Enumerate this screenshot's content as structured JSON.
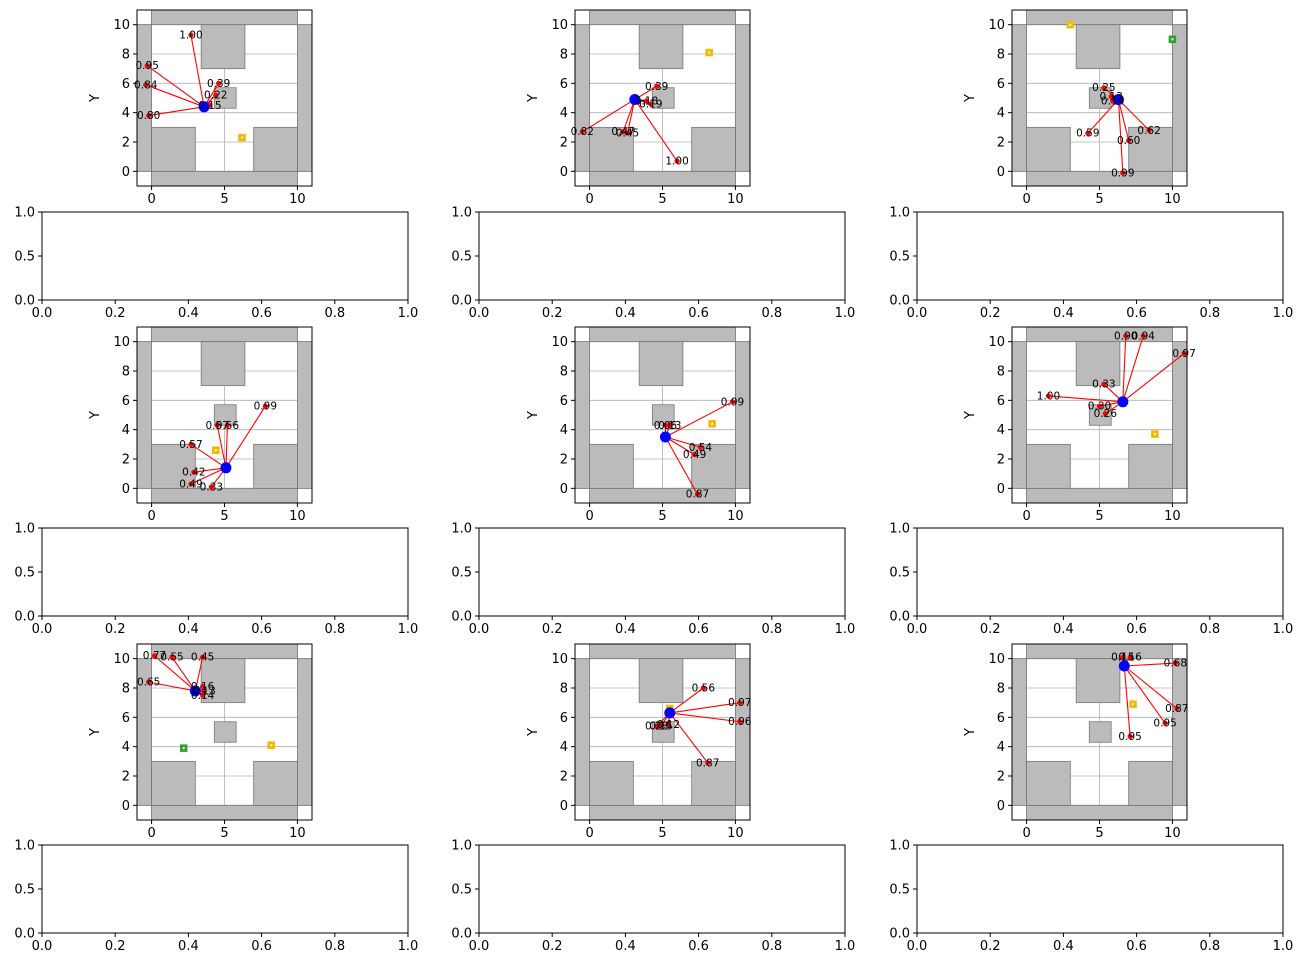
{
  "colors": {
    "obstacle_fill": "#bbbbbb",
    "obstacle_edge": "#777777",
    "robot": "#0000ff",
    "ray": "#ff0000",
    "target_yellow": "#f5b800",
    "target_green": "#2ca02c",
    "grid": "#b0b0b0"
  },
  "empty_axes": {
    "x_ticks": [
      "0.0",
      "0.2",
      "0.4",
      "0.6",
      "0.8",
      "1.0"
    ],
    "y_ticks": [
      "0.0",
      "0.5",
      "1.0"
    ],
    "xlim": [
      0,
      1
    ],
    "ylim": [
      0,
      1
    ]
  },
  "chart_data": [
    {
      "type": "scatter",
      "ylabel": "Y",
      "xlim": [
        -1,
        11
      ],
      "ylim": [
        -1,
        11
      ],
      "x_ticks": [
        "0",
        "5",
        "10"
      ],
      "y_ticks": [
        "0",
        "2",
        "4",
        "6",
        "8",
        "10"
      ],
      "grid": true,
      "robot": [
        3.6,
        4.4
      ],
      "targets": [
        {
          "x": 6.2,
          "y": 2.3,
          "color": "yellow"
        }
      ],
      "rays": [
        {
          "x": 2.7,
          "y": 9.3,
          "label": "1.00"
        },
        {
          "x": -0.3,
          "y": 7.2,
          "label": "0.95"
        },
        {
          "x": -0.4,
          "y": 5.9,
          "label": "0.84"
        },
        {
          "x": -0.2,
          "y": 3.8,
          "label": "0.80"
        },
        {
          "x": 4.6,
          "y": 6.0,
          "label": "0.39"
        },
        {
          "x": 4.4,
          "y": 5.2,
          "label": "0.22"
        },
        {
          "x": 4.0,
          "y": 4.5,
          "label": "0.15"
        }
      ]
    },
    {
      "type": "scatter",
      "ylabel": "Y",
      "xlim": [
        -1,
        11
      ],
      "ylim": [
        -1,
        11
      ],
      "x_ticks": [
        "0",
        "5",
        "10"
      ],
      "y_ticks": [
        "0",
        "2",
        "4",
        "6",
        "8",
        "10"
      ],
      "grid": true,
      "robot": [
        3.1,
        4.9
      ],
      "targets": [
        {
          "x": 8.2,
          "y": 8.1,
          "color": "yellow"
        }
      ],
      "rays": [
        {
          "x": 4.6,
          "y": 5.8,
          "label": "0.39"
        },
        {
          "x": 3.9,
          "y": 4.8,
          "label": "0.18"
        },
        {
          "x": 4.2,
          "y": 4.6,
          "label": "0.19"
        },
        {
          "x": -0.5,
          "y": 2.7,
          "label": "0.82"
        },
        {
          "x": 2.3,
          "y": 2.7,
          "label": "0.47"
        },
        {
          "x": 2.6,
          "y": 2.6,
          "label": "0.45"
        },
        {
          "x": 6.0,
          "y": 0.7,
          "label": "1.00"
        }
      ]
    },
    {
      "type": "scatter",
      "ylabel": "Y",
      "xlim": [
        -1,
        11
      ],
      "ylim": [
        -1,
        11
      ],
      "x_ticks": [
        "0",
        "5",
        "10"
      ],
      "y_ticks": [
        "0",
        "2",
        "4",
        "6",
        "8",
        "10"
      ],
      "grid": true,
      "robot": [
        6.3,
        4.9
      ],
      "targets": [
        {
          "x": 3.0,
          "y": 10.0,
          "color": "yellow"
        },
        {
          "x": 10.0,
          "y": 9.0,
          "color": "green"
        }
      ],
      "rays": [
        {
          "x": 5.3,
          "y": 5.7,
          "label": "0.25"
        },
        {
          "x": 5.8,
          "y": 5.1,
          "label": "0.13"
        },
        {
          "x": 5.9,
          "y": 4.8,
          "label": "0.14"
        },
        {
          "x": 4.2,
          "y": 2.6,
          "label": "0.59"
        },
        {
          "x": 8.4,
          "y": 2.8,
          "label": "0.62"
        },
        {
          "x": 7.0,
          "y": 2.1,
          "label": "0.60"
        },
        {
          "x": 6.6,
          "y": -0.1,
          "label": "0.99"
        }
      ]
    },
    {
      "type": "scatter",
      "ylabel": "Y",
      "xlim": [
        -1,
        11
      ],
      "ylim": [
        -1,
        11
      ],
      "x_ticks": [
        "0",
        "5",
        "10"
      ],
      "y_ticks": [
        "0",
        "2",
        "4",
        "6",
        "8",
        "10"
      ],
      "grid": true,
      "robot": [
        5.1,
        1.4
      ],
      "targets": [
        {
          "x": 4.4,
          "y": 2.6,
          "color": "yellow"
        }
      ],
      "rays": [
        {
          "x": 7.8,
          "y": 5.6,
          "label": "0.99"
        },
        {
          "x": 4.5,
          "y": 4.3,
          "label": "0.57"
        },
        {
          "x": 5.2,
          "y": 4.3,
          "label": "0.56"
        },
        {
          "x": 2.7,
          "y": 3.0,
          "label": "0.57"
        },
        {
          "x": 2.9,
          "y": 1.1,
          "label": "0.42"
        },
        {
          "x": 2.7,
          "y": 0.3,
          "label": "0.49"
        },
        {
          "x": 4.1,
          "y": 0.1,
          "label": "0.33"
        }
      ]
    },
    {
      "type": "scatter",
      "ylabel": "Y",
      "xlim": [
        -1,
        11
      ],
      "ylim": [
        -1,
        11
      ],
      "x_ticks": [
        "0",
        "5",
        "10"
      ],
      "y_ticks": [
        "0",
        "2",
        "4",
        "6",
        "8",
        "10"
      ],
      "grid": true,
      "robot": [
        5.2,
        3.5
      ],
      "targets": [
        {
          "x": 8.4,
          "y": 4.4,
          "color": "yellow"
        }
      ],
      "rays": [
        {
          "x": 9.8,
          "y": 5.9,
          "label": "0.99"
        },
        {
          "x": 5.2,
          "y": 4.3,
          "label": "0.06"
        },
        {
          "x": 5.5,
          "y": 4.3,
          "label": "0.13"
        },
        {
          "x": 7.6,
          "y": 2.8,
          "label": "0.54"
        },
        {
          "x": 7.2,
          "y": 2.3,
          "label": "0.49"
        },
        {
          "x": 7.4,
          "y": -0.4,
          "label": "0.87"
        }
      ]
    },
    {
      "type": "scatter",
      "ylabel": "Y",
      "xlim": [
        -1,
        11
      ],
      "ylim": [
        -1,
        11
      ],
      "x_ticks": [
        "0",
        "5",
        "10"
      ],
      "y_ticks": [
        "0",
        "2",
        "4",
        "6",
        "8",
        "10"
      ],
      "grid": true,
      "robot": [
        6.6,
        5.9
      ],
      "targets": [
        {
          "x": 8.8,
          "y": 3.7,
          "color": "yellow"
        }
      ],
      "rays": [
        {
          "x": 6.8,
          "y": 10.4,
          "label": "0.90"
        },
        {
          "x": 8.0,
          "y": 10.4,
          "label": "0.94"
        },
        {
          "x": 10.8,
          "y": 9.2,
          "label": "0.97"
        },
        {
          "x": 5.3,
          "y": 7.1,
          "label": "0.33"
        },
        {
          "x": 1.5,
          "y": 6.3,
          "label": "1.00"
        },
        {
          "x": 5.0,
          "y": 5.6,
          "label": "0.30"
        },
        {
          "x": 5.4,
          "y": 5.1,
          "label": "0.26"
        }
      ]
    },
    {
      "type": "scatter",
      "ylabel": "Y",
      "xlim": [
        -1,
        11
      ],
      "ylim": [
        -1,
        11
      ],
      "x_ticks": [
        "0",
        "5",
        "10"
      ],
      "y_ticks": [
        "0",
        "2",
        "4",
        "6",
        "8",
        "10"
      ],
      "grid": true,
      "robot": [
        3.0,
        7.8
      ],
      "targets": [
        {
          "x": 2.2,
          "y": 3.9,
          "color": "green"
        },
        {
          "x": 8.2,
          "y": 4.1,
          "color": "yellow"
        }
      ],
      "rays": [
        {
          "x": 0.2,
          "y": 10.2,
          "label": "0.77"
        },
        {
          "x": 1.4,
          "y": 10.1,
          "label": "0.55"
        },
        {
          "x": 3.5,
          "y": 10.1,
          "label": "0.45"
        },
        {
          "x": -0.2,
          "y": 8.4,
          "label": "0.65"
        },
        {
          "x": 3.5,
          "y": 8.1,
          "label": "0.16"
        },
        {
          "x": 3.6,
          "y": 7.8,
          "label": "0.13"
        },
        {
          "x": 3.5,
          "y": 7.5,
          "label": "0.14"
        }
      ]
    },
    {
      "type": "scatter",
      "ylabel": "Y",
      "xlim": [
        -1,
        11
      ],
      "ylim": [
        -1,
        11
      ],
      "x_ticks": [
        "0",
        "5",
        "10"
      ],
      "y_ticks": [
        "0",
        "2",
        "4",
        "6",
        "8",
        "10"
      ],
      "grid": true,
      "robot": [
        5.5,
        6.3
      ],
      "targets": [
        {
          "x": 5.5,
          "y": 6.6,
          "color": "yellow"
        }
      ],
      "rays": [
        {
          "x": 7.8,
          "y": 8.0,
          "label": "0.56"
        },
        {
          "x": 10.3,
          "y": 7.0,
          "label": "0.97"
        },
        {
          "x": 10.3,
          "y": 5.7,
          "label": "0.96"
        },
        {
          "x": 4.6,
          "y": 5.4,
          "label": "0.28"
        },
        {
          "x": 4.9,
          "y": 5.4,
          "label": "0.15"
        },
        {
          "x": 5.4,
          "y": 5.5,
          "label": "0.12"
        },
        {
          "x": 8.1,
          "y": 2.9,
          "label": "0.87"
        }
      ]
    },
    {
      "type": "scatter",
      "ylabel": "Y",
      "xlim": [
        -1,
        11
      ],
      "ylim": [
        -1,
        11
      ],
      "x_ticks": [
        "0",
        "5",
        "10"
      ],
      "y_ticks": [
        "0",
        "2",
        "4",
        "6",
        "8",
        "10"
      ],
      "grid": true,
      "robot": [
        6.7,
        9.5
      ],
      "targets": [
        {
          "x": 7.3,
          "y": 6.9,
          "color": "yellow"
        }
      ],
      "rays": [
        {
          "x": 6.6,
          "y": 10.1,
          "label": "0.15"
        },
        {
          "x": 7.1,
          "y": 10.1,
          "label": "0.16"
        },
        {
          "x": 10.2,
          "y": 9.7,
          "label": "0.68"
        },
        {
          "x": 10.3,
          "y": 6.6,
          "label": "0.87"
        },
        {
          "x": 9.5,
          "y": 5.6,
          "label": "0.95"
        },
        {
          "x": 7.1,
          "y": 4.7,
          "label": "0.95"
        }
      ]
    }
  ]
}
